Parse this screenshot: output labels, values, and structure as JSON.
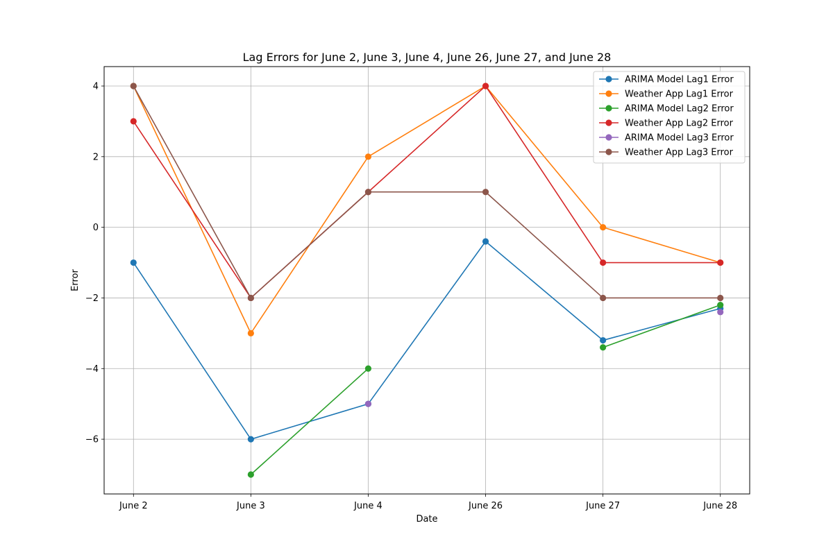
{
  "chart_data": {
    "type": "line",
    "title": "Lag Errors for June 2, June 3, June 4, June 26, June 27, and June 28",
    "xlabel": "Date",
    "ylabel": "Error",
    "categories": [
      "June 2",
      "June 3",
      "June 4",
      "June 26",
      "June 27",
      "June 28"
    ],
    "ylim": [
      -7.55,
      4.55
    ],
    "yticks": [
      4,
      2,
      0,
      -2,
      -4,
      -6
    ],
    "ytick_labels": [
      "4",
      "2",
      "0",
      "−2",
      "−4",
      "−6"
    ],
    "grid": true,
    "legend_position": "top-right",
    "marker": "circle",
    "series": [
      {
        "name": "ARIMA Model Lag1 Error",
        "color": "#1f77b4",
        "values": [
          -1,
          -6,
          -5,
          -0.4,
          -3.2,
          -2.3
        ]
      },
      {
        "name": "Weather App Lag1 Error",
        "color": "#ff7f0e",
        "values": [
          4,
          -3,
          2,
          4,
          0,
          -1
        ]
      },
      {
        "name": "ARIMA Model Lag2 Error",
        "color": "#2ca02c",
        "values": [
          null,
          -7,
          -4,
          null,
          -3.4,
          -2.2
        ]
      },
      {
        "name": "Weather App Lag2 Error",
        "color": "#d62728",
        "values": [
          3,
          -2,
          1,
          4,
          -1,
          -1
        ]
      },
      {
        "name": "ARIMA Model Lag3 Error",
        "color": "#9467bd",
        "values": [
          null,
          null,
          -5,
          null,
          null,
          -2.4
        ]
      },
      {
        "name": "Weather App Lag3 Error",
        "color": "#8c564b",
        "values": [
          4,
          -2,
          1,
          1,
          -2,
          -2
        ]
      }
    ]
  }
}
